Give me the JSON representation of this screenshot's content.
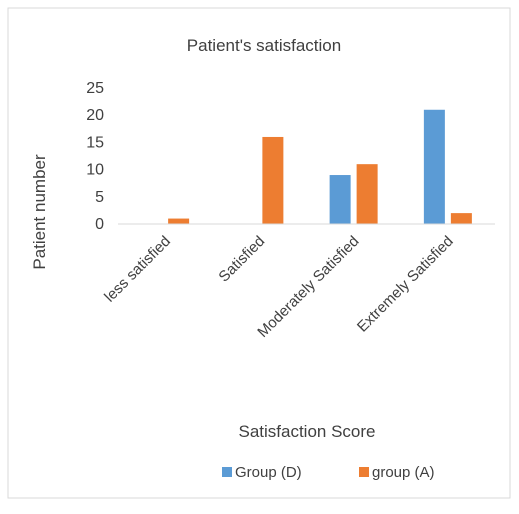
{
  "chart_data": {
    "type": "bar",
    "title": "Patient's satisfaction",
    "xlabel": "Satisfaction Score",
    "ylabel": "Patient number",
    "categories": [
      "less satisfied",
      "Satisfied",
      "Moderately Satisfied",
      "Extremely Satisfied"
    ],
    "series": [
      {
        "name": "Group (D)",
        "values": [
          0,
          0,
          9,
          21
        ],
        "color": "#5B9BD5"
      },
      {
        "name": "group (A)",
        "values": [
          1,
          16,
          11,
          2
        ],
        "color": "#ED7D31"
      }
    ],
    "ylim": [
      0,
      25
    ],
    "yticks": [
      0,
      5,
      10,
      15,
      20,
      25
    ],
    "grid": false,
    "legend_position": "bottom"
  }
}
